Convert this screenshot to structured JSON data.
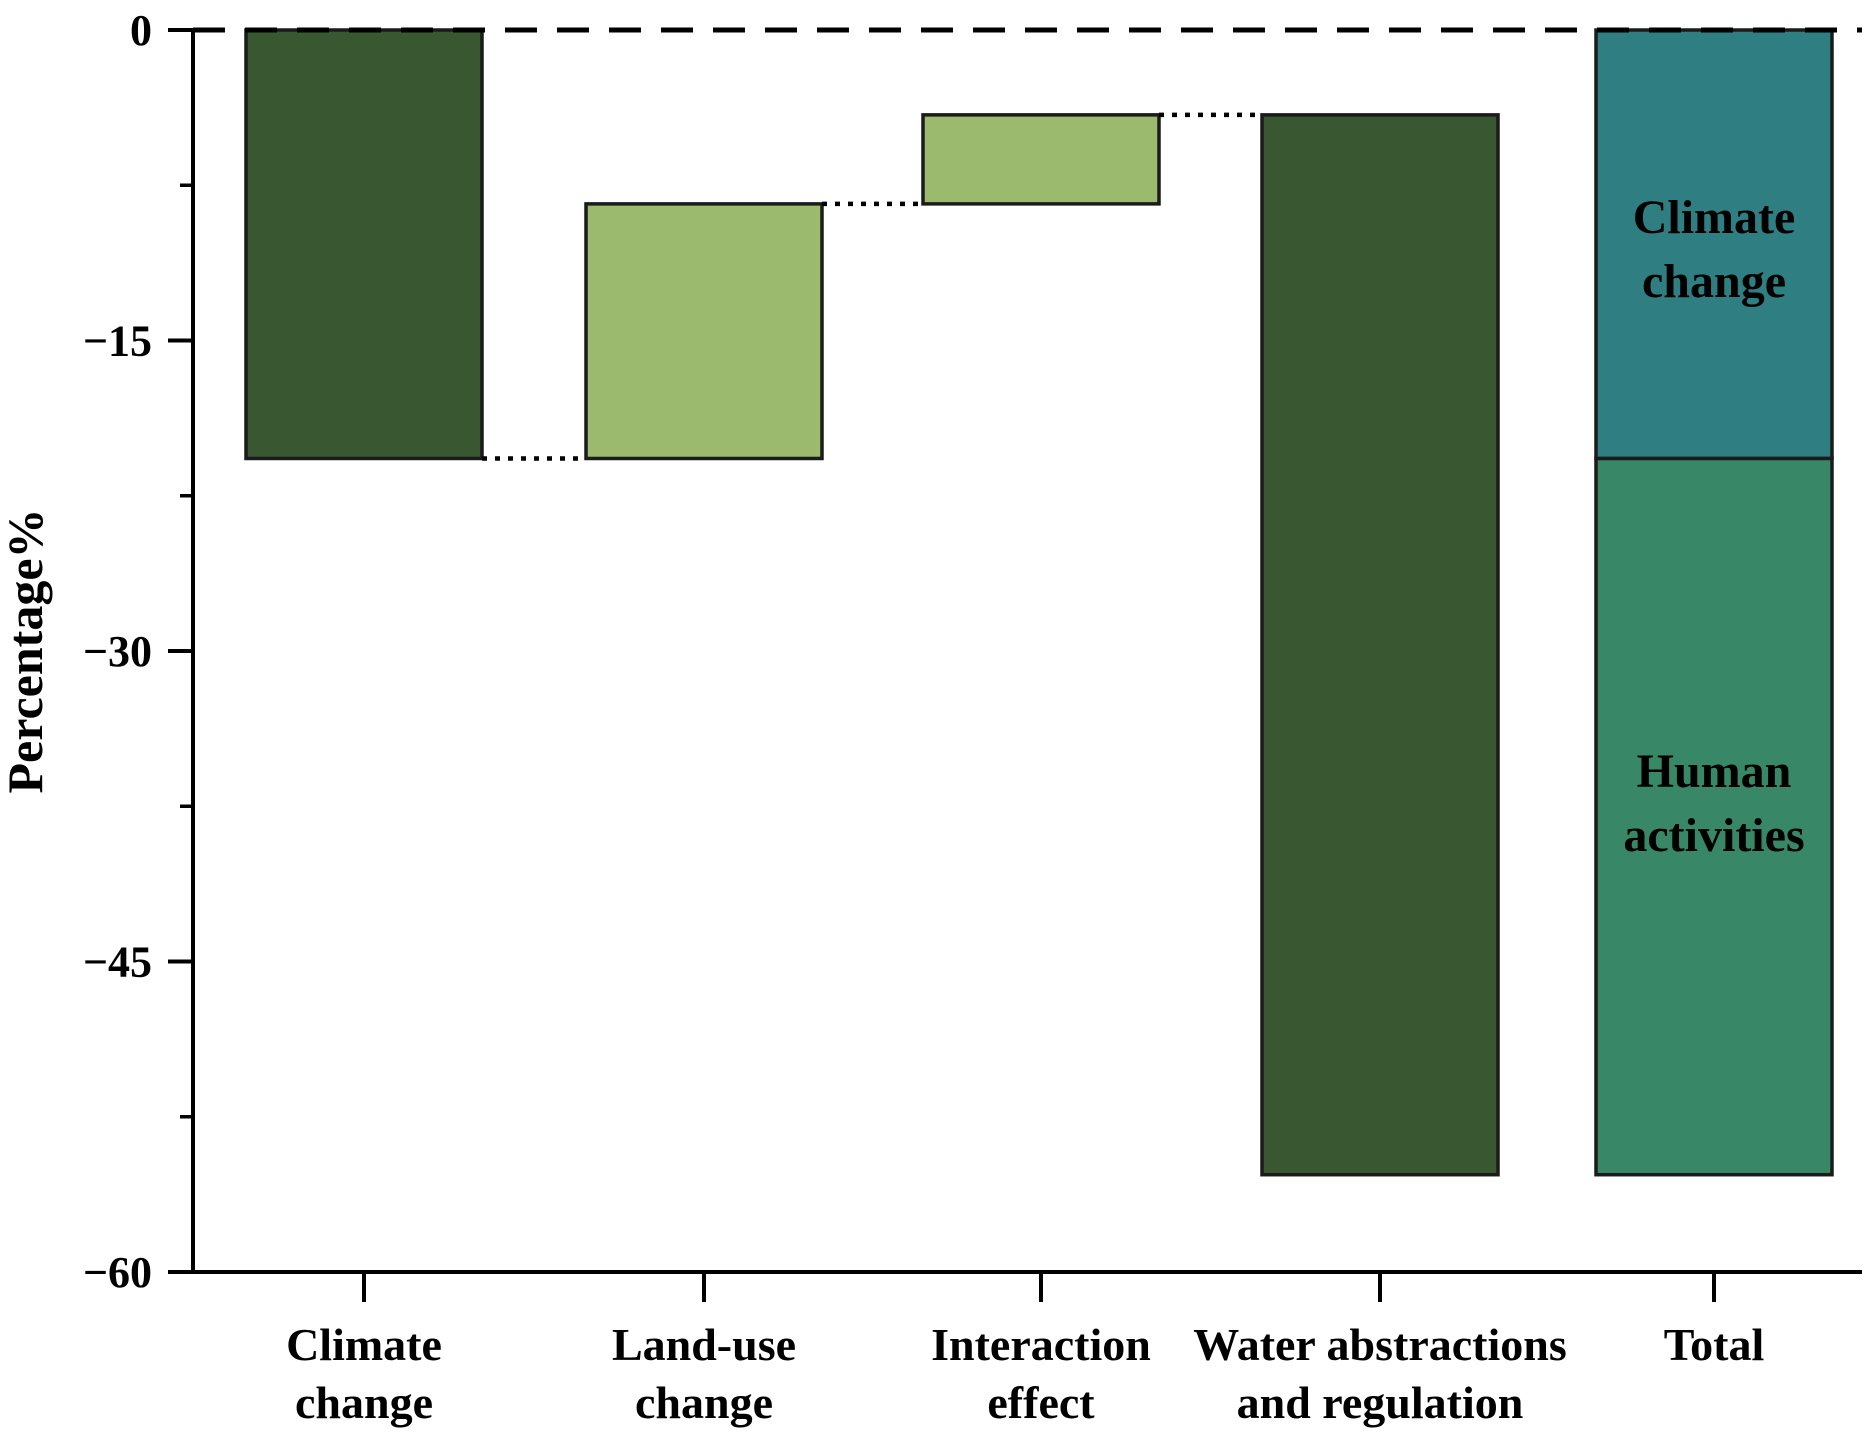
{
  "chart_data": {
    "type": "bar",
    "subtype": "waterfall",
    "title": "",
    "ylabel": "Percentage%",
    "ylim": [
      -60,
      0
    ],
    "yticks": [
      0,
      -15,
      -30,
      -45,
      -60
    ],
    "ytick_labels": [
      "0",
      "−15",
      "−30",
      "−45",
      "−60"
    ],
    "minor_yticks": [
      -7.5,
      -22.5,
      -37.5,
      -52.5
    ],
    "grid": "off",
    "baseline": {
      "value": 0,
      "style": "dashed"
    },
    "connector_style": "dotted",
    "categories": [
      "Climate change",
      "Land-use change",
      "Interaction effect",
      "Water abstractions and regulation",
      "Total"
    ],
    "category_label_lines": [
      [
        "Climate",
        "change"
      ],
      [
        "Land-use",
        "change"
      ],
      [
        "Interaction",
        "effect"
      ],
      [
        "Water abstractions",
        "and regulation"
      ],
      [
        "Total"
      ]
    ],
    "series": [
      {
        "name": "Climate change",
        "start": 0,
        "end": -20.7,
        "delta": -20.7,
        "color": "dark_green"
      },
      {
        "name": "Land-use change",
        "start": -20.7,
        "end": -8.4,
        "delta": 12.3,
        "color": "light_green"
      },
      {
        "name": "Interaction effect",
        "start": -8.4,
        "end": -4.1,
        "delta": 4.3,
        "color": "light_green"
      },
      {
        "name": "Water abstractions and regulation",
        "start": -4.1,
        "end": -55.3,
        "delta": -51.2,
        "color": "dark_green"
      },
      {
        "name": "Total",
        "start": 0,
        "end": -55.3,
        "delta": -55.3,
        "segments": [
          {
            "label": "Climate change",
            "label_lines": [
              "Climate",
              "change"
            ],
            "start": 0,
            "end": -20.7,
            "color": "teal"
          },
          {
            "label": "Human activities",
            "label_lines": [
              "Human",
              "activities"
            ],
            "start": -20.7,
            "end": -55.3,
            "color": "sea_green"
          }
        ]
      }
    ],
    "connectors": [
      {
        "value": -20.7,
        "from_bar": 0,
        "to_bar": 1
      },
      {
        "value": -8.4,
        "from_bar": 1,
        "to_bar": 2
      },
      {
        "value": -4.1,
        "from_bar": 2,
        "to_bar": 3
      }
    ],
    "colors": {
      "dark_green": "#395731",
      "light_green": "#9bba6d",
      "teal": "#2f7e81",
      "sea_green": "#388767",
      "bar_outline": "#1b1b1b",
      "axis": "#000000",
      "text": "#000000",
      "background": "#ffffff"
    }
  }
}
